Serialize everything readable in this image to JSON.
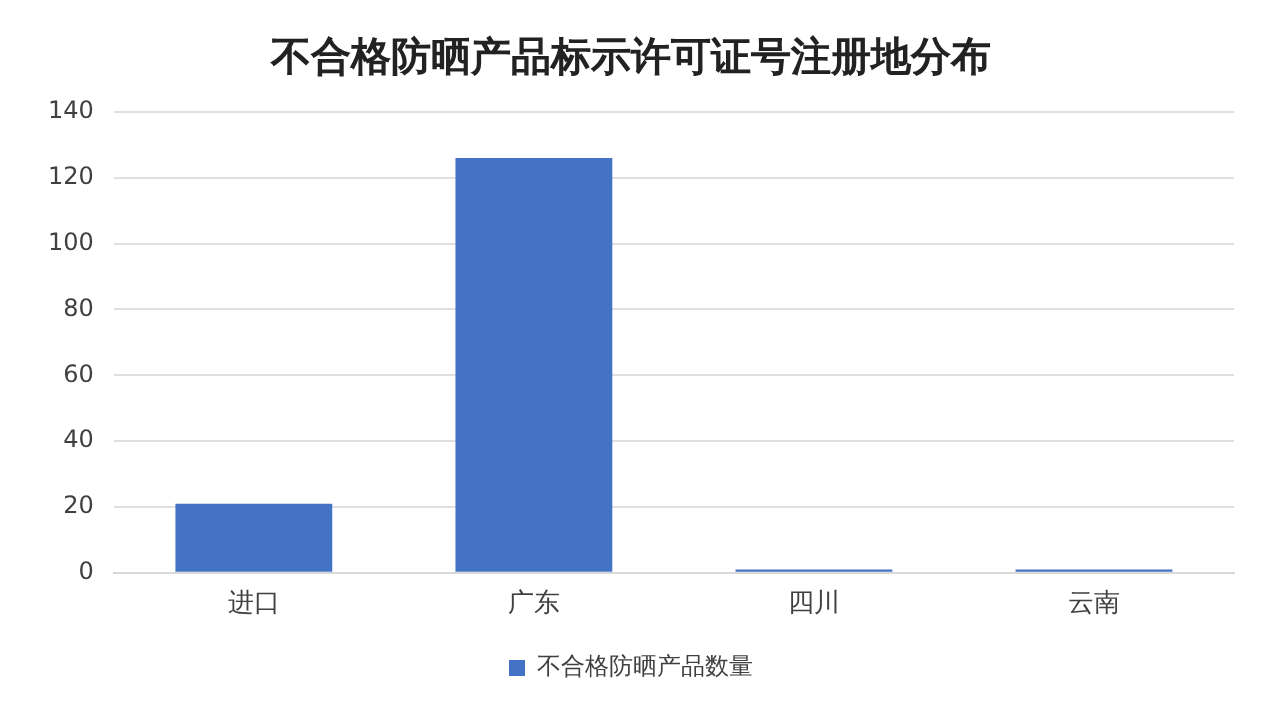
{
  "chart_data": {
    "type": "bar",
    "title": "不合格防晒产品标示许可证号注册地分布",
    "categories": [
      "进口",
      "广东",
      "四川",
      "云南"
    ],
    "series": [
      {
        "name": "不合格防晒产品数量",
        "color": "#4472c4",
        "values": [
          21,
          126,
          1,
          1
        ]
      }
    ],
    "ylim": [
      0,
      140
    ],
    "yticks": [
      0,
      20,
      40,
      60,
      80,
      100,
      120,
      140
    ],
    "grid": "y",
    "legend": "bottom"
  }
}
